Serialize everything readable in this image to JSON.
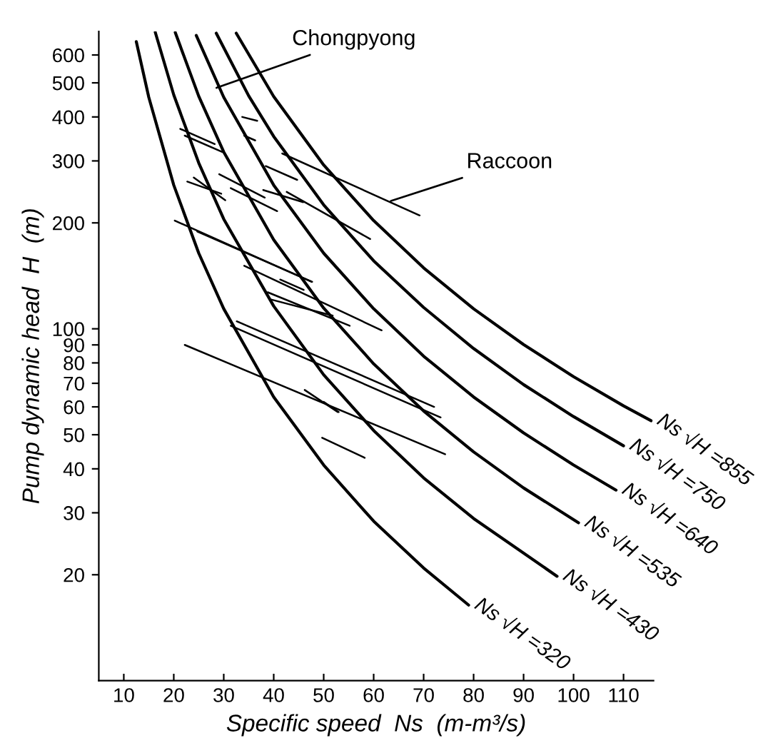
{
  "chart_data": {
    "type": "line",
    "xlabel": "Specific speed  Ns  (m-m³/s)",
    "ylabel": "Pump dynamic head  H  (m)",
    "log": "y",
    "xlim": [
      5,
      116
    ],
    "xticks": [
      10,
      20,
      30,
      40,
      50,
      60,
      70,
      80,
      90,
      100,
      110
    ],
    "ylim": [
      10,
      700
    ],
    "yticks": [
      20,
      30,
      40,
      50,
      60,
      70,
      80,
      90,
      100,
      200,
      300,
      400,
      500,
      600
    ],
    "series": [
      {
        "name": "Ns √H =320",
        "color": "#000000",
        "x": [
          12.5,
          15,
          20,
          25,
          30,
          40,
          50,
          60,
          70,
          79
        ],
        "values": [
          655,
          455,
          256,
          164,
          114,
          64,
          41,
          28.4,
          20.9,
          16.4
        ]
      },
      {
        "name": "Ns √H =430",
        "color": "#000000",
        "x": [
          16.3,
          20,
          25,
          30,
          40,
          50,
          60,
          70,
          80,
          96.7
        ],
        "values": [
          696,
          462,
          296,
          205,
          116,
          74,
          51.4,
          37.7,
          28.9,
          19.8
        ]
      },
      {
        "name": "Ns √H =535",
        "color": "#000000",
        "x": [
          20.3,
          25,
          30,
          40,
          50,
          60,
          70,
          80,
          90,
          101
        ],
        "values": [
          695,
          458,
          318,
          179,
          114.5,
          79.5,
          58.4,
          44.7,
          35.3,
          28.1
        ]
      },
      {
        "name": "Ns √H =640",
        "color": "#000000",
        "x": [
          24.5,
          30,
          40,
          50,
          60,
          70,
          80,
          90,
          100,
          108.5
        ],
        "values": [
          682,
          455,
          256,
          164,
          114,
          83.6,
          64,
          50.6,
          41,
          34.8
        ]
      },
      {
        "name": "Ns √H =750",
        "color": "#000000",
        "x": [
          28.5,
          35,
          40,
          50,
          60,
          70,
          80,
          90,
          100,
          110
        ],
        "values": [
          692,
          459,
          352,
          225,
          156,
          115,
          87.9,
          69.4,
          56.3,
          46.5
        ]
      },
      {
        "name": "Ns √H =855",
        "color": "#000000",
        "x": [
          32.5,
          40,
          50,
          60,
          70,
          80,
          90,
          100,
          110,
          115.5
        ],
        "values": [
          692,
          457,
          292,
          203,
          149,
          114,
          90.2,
          73.1,
          60.4,
          54.8
        ]
      },
      {
        "color": "#000000",
        "x": [
          21.3,
          28.2
        ],
        "values": [
          370,
          335
        ]
      },
      {
        "color": "#000000",
        "x": [
          22.2,
          29.7
        ],
        "values": [
          354,
          318
        ]
      },
      {
        "color": "#000000",
        "x": [
          24.0,
          30.3
        ],
        "values": [
          269,
          232
        ]
      },
      {
        "color": "#000000",
        "x": [
          22.7,
          29.5
        ],
        "values": [
          262,
          242
        ]
      },
      {
        "color": "#000000",
        "x": [
          29.1,
          38.2
        ],
        "values": [
          275,
          236
        ]
      },
      {
        "color": "#000000",
        "x": [
          31.4,
          40.7
        ],
        "values": [
          251,
          216
        ]
      },
      {
        "color": "#000000",
        "x": [
          37.9,
          45.9
        ],
        "values": [
          248,
          229
        ]
      },
      {
        "color": "#000000",
        "x": [
          41.7,
          69.2
        ],
        "values": [
          315,
          210
        ]
      },
      {
        "color": "#000000",
        "x": [
          38.4,
          44.7
        ],
        "values": [
          290,
          265
        ]
      },
      {
        "color": "#000000",
        "x": [
          42.6,
          59.3
        ],
        "values": [
          245,
          180
        ]
      },
      {
        "color": "#000000",
        "x": [
          33.7,
          36.7
        ],
        "values": [
          400,
          390
        ]
      },
      {
        "color": "#000000",
        "x": [
          34.1,
          36.3
        ],
        "values": [
          354,
          343
        ]
      },
      {
        "color": "#000000",
        "x": [
          20.2,
          47.6
        ],
        "values": [
          203,
          136
        ]
      },
      {
        "color": "#000000",
        "x": [
          24.7,
          47.7
        ],
        "values": [
          189,
          136
        ]
      },
      {
        "color": "#000000",
        "x": [
          34.1,
          61.6
        ],
        "values": [
          151,
          99
        ]
      },
      {
        "color": "#000000",
        "x": [
          41.3,
          46.0
        ],
        "values": [
          138,
          129
        ]
      },
      {
        "color": "#000000",
        "x": [
          38.8,
          55.2
        ],
        "values": [
          127,
          102
        ]
      },
      {
        "color": "#000000",
        "x": [
          39.6,
          51.8
        ],
        "values": [
          121,
          109
        ]
      },
      {
        "color": "#000000",
        "x": [
          32.6,
          72.1
        ],
        "values": [
          105,
          60
        ]
      },
      {
        "color": "#000000",
        "x": [
          31.4,
          73.4
        ],
        "values": [
          102,
          56
        ]
      },
      {
        "color": "#000000",
        "x": [
          22.2,
          74.3
        ],
        "values": [
          90,
          44
        ]
      },
      {
        "color": "#000000",
        "x": [
          46.2,
          52.8
        ],
        "values": [
          67,
          58
        ]
      },
      {
        "color": "#000000",
        "x": [
          50.0,
          53.0
        ],
        "values": [
          62,
          58
        ]
      },
      {
        "color": "#000000",
        "x": [
          49.7,
          58.2
        ],
        "values": [
          49,
          43
        ]
      }
    ],
    "annotations": [
      {
        "text": "Chongpyong",
        "x": 27.8,
        "y": 480
      },
      {
        "text": "Raccoon",
        "x": 62.7,
        "y": 229
      }
    ]
  }
}
